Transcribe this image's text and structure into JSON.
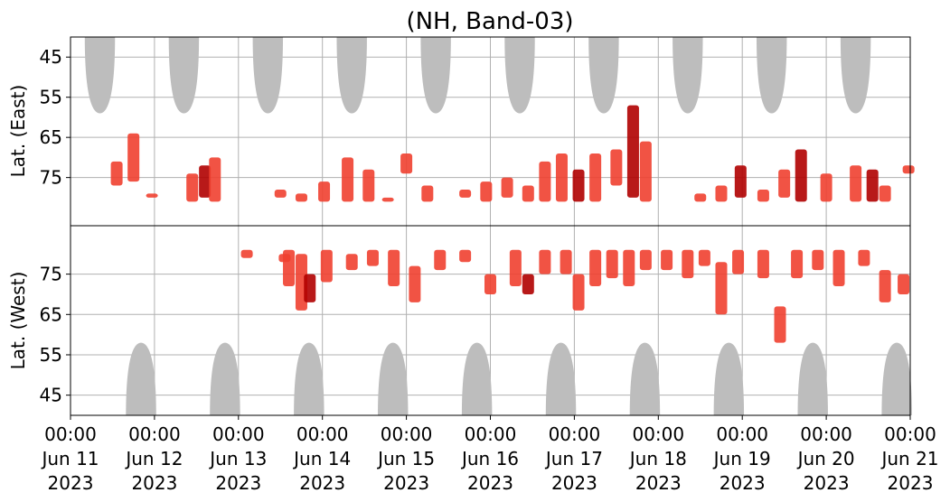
{
  "chart_data": {
    "type": "heatmap",
    "title": "(NH, Band-03)",
    "panels": [
      {
        "name": "east",
        "ylabel": "Lat. (East)",
        "ylim": [
          87,
          40
        ],
        "yticks": [
          45,
          55,
          65,
          75
        ],
        "ytick_labels": [
          "45",
          "55",
          "65",
          "75"
        ]
      },
      {
        "name": "west",
        "ylabel": "Lat. (West)",
        "ylim": [
          87,
          40
        ],
        "yticks": [
          75,
          65,
          55,
          45
        ],
        "ytick_labels": [
          "75",
          "65",
          "55",
          "45"
        ]
      }
    ],
    "xlim": [
      "2023-06-11 00:00",
      "2023-06-21 00:00"
    ],
    "xticks": [
      {
        "time": "00:00",
        "date": "Jun 11",
        "year": "2023"
      },
      {
        "time": "00:00",
        "date": "Jun 12",
        "year": "2023"
      },
      {
        "time": "00:00",
        "date": "Jun 13",
        "year": "2023"
      },
      {
        "time": "00:00",
        "date": "Jun 14",
        "year": "2023"
      },
      {
        "time": "00:00",
        "date": "Jun 15",
        "year": "2023"
      },
      {
        "time": "00:00",
        "date": "Jun 16",
        "year": "2023"
      },
      {
        "time": "00:00",
        "date": "Jun 17",
        "year": "2023"
      },
      {
        "time": "00:00",
        "date": "Jun 18",
        "year": "2023"
      },
      {
        "time": "00:00",
        "date": "Jun 19",
        "year": "2023"
      },
      {
        "time": "00:00",
        "date": "Jun 20",
        "year": "2023"
      },
      {
        "time": "00:00",
        "date": "Jun 21",
        "year": "2023"
      }
    ],
    "grid": true,
    "colors": {
      "daylight_mask": "#bdbdbd",
      "event": "#f04030",
      "event_strong": "#b00000",
      "grid": "#b0b0b0"
    },
    "daylight_east": [
      {
        "center_day": 0.35,
        "half_width_days": 0.18,
        "min_lat": 59
      },
      {
        "center_day": 1.35,
        "half_width_days": 0.18,
        "min_lat": 59
      },
      {
        "center_day": 2.35,
        "half_width_days": 0.18,
        "min_lat": 59
      },
      {
        "center_day": 3.35,
        "half_width_days": 0.18,
        "min_lat": 59
      },
      {
        "center_day": 4.35,
        "half_width_days": 0.18,
        "min_lat": 59
      },
      {
        "center_day": 5.35,
        "half_width_days": 0.18,
        "min_lat": 59
      },
      {
        "center_day": 6.35,
        "half_width_days": 0.18,
        "min_lat": 59
      },
      {
        "center_day": 7.35,
        "half_width_days": 0.18,
        "min_lat": 59
      },
      {
        "center_day": 8.35,
        "half_width_days": 0.18,
        "min_lat": 59
      },
      {
        "center_day": 9.35,
        "half_width_days": 0.18,
        "min_lat": 59
      }
    ],
    "daylight_west": [
      {
        "center_day": 0.84,
        "half_width_days": 0.18,
        "min_lat": 58
      },
      {
        "center_day": 1.84,
        "half_width_days": 0.18,
        "min_lat": 58
      },
      {
        "center_day": 2.84,
        "half_width_days": 0.18,
        "min_lat": 58
      },
      {
        "center_day": 3.84,
        "half_width_days": 0.18,
        "min_lat": 58
      },
      {
        "center_day": 4.84,
        "half_width_days": 0.18,
        "min_lat": 58
      },
      {
        "center_day": 5.84,
        "half_width_days": 0.18,
        "min_lat": 58
      },
      {
        "center_day": 6.84,
        "half_width_days": 0.18,
        "min_lat": 58
      },
      {
        "center_day": 7.84,
        "half_width_days": 0.18,
        "min_lat": 58
      },
      {
        "center_day": 8.84,
        "half_width_days": 0.18,
        "min_lat": 58
      },
      {
        "center_day": 9.84,
        "half_width_days": 0.18,
        "min_lat": 58
      }
    ],
    "events_east": [
      {
        "day": 0.55,
        "lat_top": 71,
        "lat_bottom": 77,
        "intensity": 1
      },
      {
        "day": 0.75,
        "lat_top": 64,
        "lat_bottom": 76,
        "intensity": 1
      },
      {
        "day": 0.97,
        "lat_top": 79,
        "lat_bottom": 80,
        "intensity": 1
      },
      {
        "day": 1.45,
        "lat_top": 74,
        "lat_bottom": 81,
        "intensity": 1
      },
      {
        "day": 1.6,
        "lat_top": 72,
        "lat_bottom": 80,
        "intensity": 2
      },
      {
        "day": 1.72,
        "lat_top": 70,
        "lat_bottom": 81,
        "intensity": 1
      },
      {
        "day": 2.5,
        "lat_top": 78,
        "lat_bottom": 80,
        "intensity": 1
      },
      {
        "day": 2.75,
        "lat_top": 79,
        "lat_bottom": 81,
        "intensity": 1
      },
      {
        "day": 3.02,
        "lat_top": 76,
        "lat_bottom": 81,
        "intensity": 1
      },
      {
        "day": 3.3,
        "lat_top": 70,
        "lat_bottom": 81,
        "intensity": 1
      },
      {
        "day": 3.55,
        "lat_top": 73,
        "lat_bottom": 81,
        "intensity": 1
      },
      {
        "day": 3.78,
        "lat_top": 80,
        "lat_bottom": 81,
        "intensity": 1
      },
      {
        "day": 4.0,
        "lat_top": 69,
        "lat_bottom": 74,
        "intensity": 1
      },
      {
        "day": 4.25,
        "lat_top": 77,
        "lat_bottom": 81,
        "intensity": 1
      },
      {
        "day": 4.7,
        "lat_top": 78,
        "lat_bottom": 80,
        "intensity": 1
      },
      {
        "day": 4.95,
        "lat_top": 76,
        "lat_bottom": 81,
        "intensity": 1
      },
      {
        "day": 5.2,
        "lat_top": 75,
        "lat_bottom": 80,
        "intensity": 1
      },
      {
        "day": 5.45,
        "lat_top": 77,
        "lat_bottom": 81,
        "intensity": 1
      },
      {
        "day": 5.65,
        "lat_top": 71,
        "lat_bottom": 81,
        "intensity": 1
      },
      {
        "day": 5.85,
        "lat_top": 69,
        "lat_bottom": 81,
        "intensity": 1
      },
      {
        "day": 6.05,
        "lat_top": 73,
        "lat_bottom": 81,
        "intensity": 2
      },
      {
        "day": 6.25,
        "lat_top": 69,
        "lat_bottom": 81,
        "intensity": 1
      },
      {
        "day": 6.5,
        "lat_top": 68,
        "lat_bottom": 77,
        "intensity": 1
      },
      {
        "day": 6.7,
        "lat_top": 57,
        "lat_bottom": 80,
        "intensity": 2
      },
      {
        "day": 6.85,
        "lat_top": 66,
        "lat_bottom": 81,
        "intensity": 1
      },
      {
        "day": 7.5,
        "lat_top": 79,
        "lat_bottom": 81,
        "intensity": 1
      },
      {
        "day": 7.75,
        "lat_top": 77,
        "lat_bottom": 81,
        "intensity": 1
      },
      {
        "day": 7.98,
        "lat_top": 72,
        "lat_bottom": 80,
        "intensity": 2
      },
      {
        "day": 8.25,
        "lat_top": 78,
        "lat_bottom": 81,
        "intensity": 1
      },
      {
        "day": 8.5,
        "lat_top": 73,
        "lat_bottom": 80,
        "intensity": 1
      },
      {
        "day": 8.7,
        "lat_top": 68,
        "lat_bottom": 81,
        "intensity": 2
      },
      {
        "day": 9.0,
        "lat_top": 74,
        "lat_bottom": 81,
        "intensity": 1
      },
      {
        "day": 9.35,
        "lat_top": 72,
        "lat_bottom": 81,
        "intensity": 1
      },
      {
        "day": 9.55,
        "lat_top": 73,
        "lat_bottom": 81,
        "intensity": 2
      },
      {
        "day": 9.7,
        "lat_top": 77,
        "lat_bottom": 81,
        "intensity": 1
      },
      {
        "day": 9.98,
        "lat_top": 72,
        "lat_bottom": 74,
        "intensity": 1
      }
    ],
    "events_west": [
      {
        "day": 2.1,
        "lat_top": 81,
        "lat_bottom": 79,
        "intensity": 1
      },
      {
        "day": 2.55,
        "lat_top": 80,
        "lat_bottom": 78,
        "intensity": 1
      },
      {
        "day": 2.6,
        "lat_top": 81,
        "lat_bottom": 72,
        "intensity": 1
      },
      {
        "day": 2.75,
        "lat_top": 80,
        "lat_bottom": 66,
        "intensity": 1
      },
      {
        "day": 2.85,
        "lat_top": 75,
        "lat_bottom": 68,
        "intensity": 2
      },
      {
        "day": 3.05,
        "lat_top": 81,
        "lat_bottom": 73,
        "intensity": 1
      },
      {
        "day": 3.35,
        "lat_top": 80,
        "lat_bottom": 76,
        "intensity": 1
      },
      {
        "day": 3.6,
        "lat_top": 81,
        "lat_bottom": 77,
        "intensity": 1
      },
      {
        "day": 3.85,
        "lat_top": 81,
        "lat_bottom": 72,
        "intensity": 1
      },
      {
        "day": 4.1,
        "lat_top": 77,
        "lat_bottom": 68,
        "intensity": 1
      },
      {
        "day": 4.4,
        "lat_top": 81,
        "lat_bottom": 76,
        "intensity": 1
      },
      {
        "day": 4.7,
        "lat_top": 81,
        "lat_bottom": 78,
        "intensity": 1
      },
      {
        "day": 5.0,
        "lat_top": 75,
        "lat_bottom": 70,
        "intensity": 1
      },
      {
        "day": 5.3,
        "lat_top": 81,
        "lat_bottom": 72,
        "intensity": 1
      },
      {
        "day": 5.45,
        "lat_top": 75,
        "lat_bottom": 70,
        "intensity": 2
      },
      {
        "day": 5.65,
        "lat_top": 81,
        "lat_bottom": 75,
        "intensity": 1
      },
      {
        "day": 5.9,
        "lat_top": 81,
        "lat_bottom": 75,
        "intensity": 1
      },
      {
        "day": 6.05,
        "lat_top": 75,
        "lat_bottom": 66,
        "intensity": 1
      },
      {
        "day": 6.25,
        "lat_top": 81,
        "lat_bottom": 72,
        "intensity": 1
      },
      {
        "day": 6.45,
        "lat_top": 81,
        "lat_bottom": 74,
        "intensity": 1
      },
      {
        "day": 6.65,
        "lat_top": 81,
        "lat_bottom": 72,
        "intensity": 1
      },
      {
        "day": 6.85,
        "lat_top": 81,
        "lat_bottom": 76,
        "intensity": 1
      },
      {
        "day": 7.1,
        "lat_top": 81,
        "lat_bottom": 76,
        "intensity": 1
      },
      {
        "day": 7.35,
        "lat_top": 81,
        "lat_bottom": 74,
        "intensity": 1
      },
      {
        "day": 7.55,
        "lat_top": 81,
        "lat_bottom": 77,
        "intensity": 1
      },
      {
        "day": 7.75,
        "lat_top": 78,
        "lat_bottom": 65,
        "intensity": 1
      },
      {
        "day": 7.95,
        "lat_top": 81,
        "lat_bottom": 75,
        "intensity": 1
      },
      {
        "day": 8.25,
        "lat_top": 81,
        "lat_bottom": 74,
        "intensity": 1
      },
      {
        "day": 8.45,
        "lat_top": 67,
        "lat_bottom": 58,
        "intensity": 1
      },
      {
        "day": 8.65,
        "lat_top": 81,
        "lat_bottom": 74,
        "intensity": 1
      },
      {
        "day": 8.9,
        "lat_top": 81,
        "lat_bottom": 76,
        "intensity": 1
      },
      {
        "day": 9.15,
        "lat_top": 81,
        "lat_bottom": 72,
        "intensity": 1
      },
      {
        "day": 9.45,
        "lat_top": 81,
        "lat_bottom": 77,
        "intensity": 1
      },
      {
        "day": 9.7,
        "lat_top": 76,
        "lat_bottom": 68,
        "intensity": 1
      },
      {
        "day": 9.92,
        "lat_top": 75,
        "lat_bottom": 70,
        "intensity": 1
      }
    ]
  }
}
